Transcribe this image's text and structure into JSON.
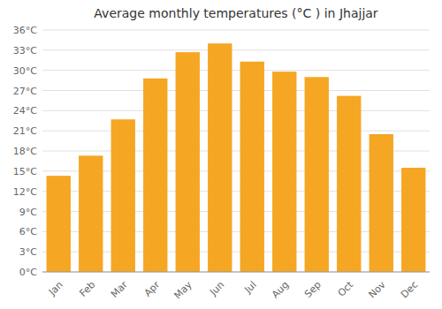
{
  "chart_data": {
    "type": "bar",
    "title": "Average monthly temperatures (°C ) in Jhajjar",
    "categories": [
      "Jan",
      "Feb",
      "Mar",
      "Apr",
      "May",
      "Jun",
      "Jul",
      "Aug",
      "Sep",
      "Oct",
      "Nov",
      "Dec"
    ],
    "values": [
      14.3,
      17.3,
      22.7,
      28.8,
      32.7,
      34.0,
      31.3,
      29.8,
      29.0,
      26.2,
      20.5,
      15.5
    ],
    "color": "#F5A623",
    "ylim": [
      0,
      36
    ],
    "yticks": [
      {
        "value": 0,
        "label": "0°C"
      },
      {
        "value": 3,
        "label": "3°C"
      },
      {
        "value": 6,
        "label": "6°C"
      },
      {
        "value": 9,
        "label": "9°C"
      },
      {
        "value": 12,
        "label": "12°C"
      },
      {
        "value": 15,
        "label": "15°C"
      },
      {
        "value": 18,
        "label": "18°C"
      },
      {
        "value": 21,
        "label": "21°C"
      },
      {
        "value": 24,
        "label": "24°C"
      },
      {
        "value": 27,
        "label": "27°C"
      },
      {
        "value": 30,
        "label": "30°C"
      },
      {
        "value": 33,
        "label": "33°C"
      },
      {
        "value": 36,
        "label": "36°C"
      }
    ],
    "grid": true
  }
}
